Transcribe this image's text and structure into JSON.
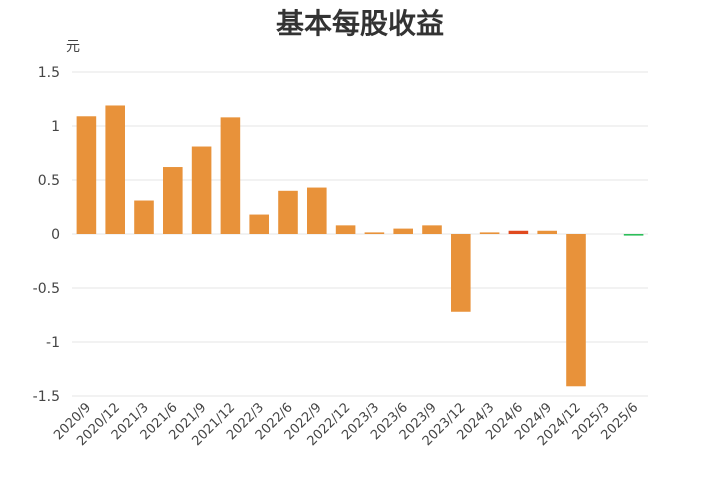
{
  "chart_data": {
    "type": "bar",
    "title": "基本每股收益",
    "ylabel": "元",
    "xlabel": "",
    "ylim": [
      -1.5,
      1.5
    ],
    "yticks": [
      1.5,
      1,
      0.5,
      0,
      -0.5,
      -1,
      -1.5
    ],
    "ytick_labels": [
      "1.5",
      "1",
      "0.5",
      "0",
      "-0.5",
      "-1",
      "-1.5"
    ],
    "grid": true,
    "categories": [
      "2020/9",
      "2020/12",
      "2021/3",
      "2021/6",
      "2021/9",
      "2021/12",
      "2022/3",
      "2022/6",
      "2022/9",
      "2022/12",
      "2023/3",
      "2023/6",
      "2023/9",
      "2023/12",
      "2024/3",
      "2024/6",
      "2024/9",
      "2024/12",
      "2025/3",
      "2025/6"
    ],
    "values": [
      1.09,
      1.19,
      0.31,
      0.62,
      0.81,
      1.08,
      0.18,
      0.4,
      0.43,
      0.08,
      0.01,
      0.05,
      0.08,
      -0.72,
      0.01,
      0.03,
      0.03,
      -1.41,
      0.0,
      -0.01
    ],
    "colors": [
      "#E8923A",
      "#E8923A",
      "#E8923A",
      "#E8923A",
      "#E8923A",
      "#E8923A",
      "#E8923A",
      "#E8923A",
      "#E8923A",
      "#E8923A",
      "#E8923A",
      "#E8923A",
      "#E8923A",
      "#E8923A",
      "#E8923A",
      "#E04A1F",
      "#E8923A",
      "#E8923A",
      "#E8923A",
      "#2DBE5A"
    ]
  }
}
